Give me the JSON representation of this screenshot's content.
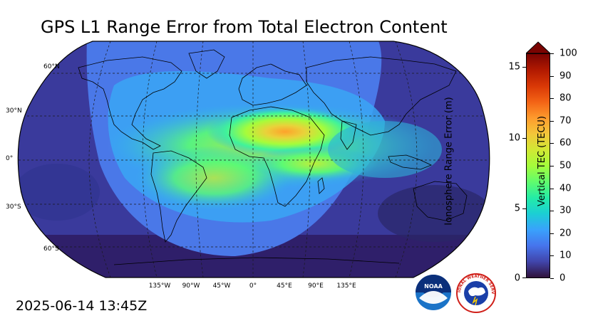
{
  "title": "GPS L1 Range Error from Total Electron Content",
  "timestamp": "2025-06-14 13:45Z",
  "map": {
    "projection": "robinson",
    "lat_labels": [
      "60°N",
      "30°N",
      "0°",
      "30°S",
      "60°S"
    ],
    "lon_labels": [
      "135°W",
      "90°W",
      "45°W",
      "0°",
      "45°E",
      "90°E",
      "135°E"
    ]
  },
  "colorbar": {
    "left_label": "Ionosphere Range Error (m)",
    "right_label": "Vertical TEC (TECU)",
    "left_ticks": [
      "15",
      "10",
      "5",
      "0"
    ],
    "right_ticks": [
      "100",
      "90",
      "80",
      "70",
      "60",
      "50",
      "40",
      "30",
      "20",
      "10",
      "0"
    ],
    "colors": [
      "#30123b",
      "#4145ab",
      "#4675ed",
      "#39a2fc",
      "#1bcfd4",
      "#24eca6",
      "#61fc6c",
      "#a4fc3b",
      "#d1e834",
      "#f3c63a",
      "#fe9b2d",
      "#f36315",
      "#d93806",
      "#b11901",
      "#7a0402"
    ],
    "extend": "max"
  },
  "logos": {
    "noaa": "NOAA",
    "nws": "NATIONAL WEATHER SERVICE"
  }
}
